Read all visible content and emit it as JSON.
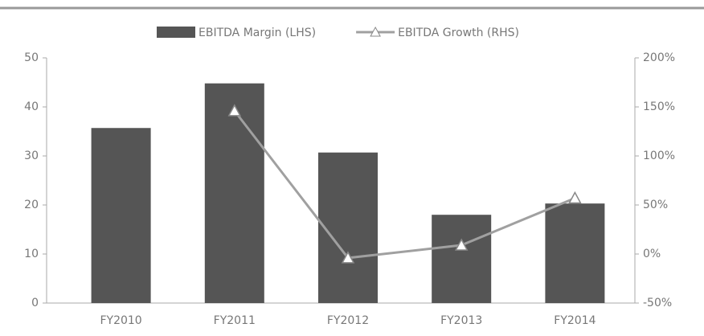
{
  "chart_data": {
    "type": "bar_line",
    "categories": [
      "FY2010",
      "FY2011",
      "FY2012",
      "FY2013",
      "FY2014"
    ],
    "series": [
      {
        "name": "EBITDA Margin (LHS)",
        "color": "#555555",
        "type": "bar",
        "values": [
          35.7,
          44.8,
          30.7,
          18,
          20.3
        ]
      },
      {
        "name": "EBITDA Growth (RHS)",
        "color": "#a0a0a0",
        "type": "line",
        "axis": "y2",
        "values": [
          null,
          146,
          -4,
          9,
          57
        ]
      }
    ],
    "ylim": [
      0,
      50
    ],
    "yticks": [
      0,
      10,
      20,
      30,
      40,
      50
    ],
    "y2lim": [
      -50,
      200
    ],
    "y2ticks": [
      {
        "value": -50,
        "label": "-50%"
      },
      {
        "value": 0,
        "label": "0%"
      },
      {
        "value": 50,
        "label": "50%"
      },
      {
        "value": 100,
        "label": "100%"
      },
      {
        "value": 150,
        "label": "150%"
      },
      {
        "value": 200,
        "label": "200%"
      }
    ],
    "legend": "top",
    "grid": false
  }
}
